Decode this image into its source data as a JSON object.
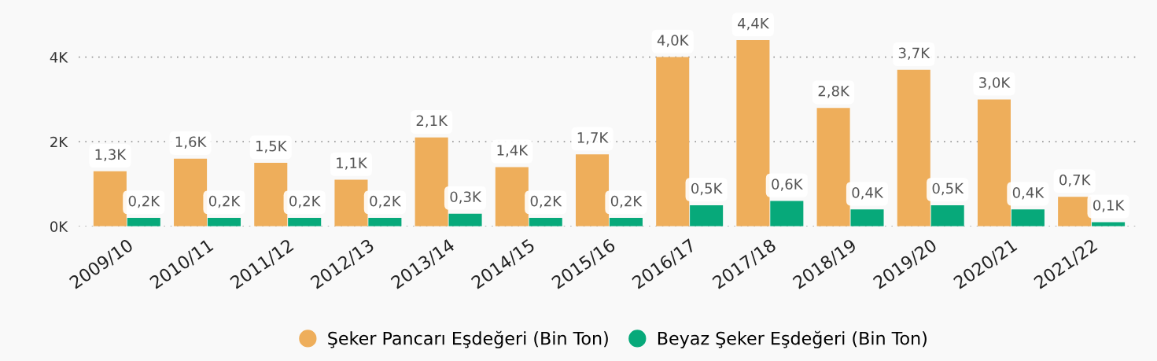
{
  "chart_data": {
    "type": "bar",
    "categories": [
      "2009/10",
      "2010/11",
      "2011/12",
      "2012/13",
      "2013/14",
      "2014/15",
      "2015/16",
      "2016/17",
      "2017/18",
      "2018/19",
      "2019/20",
      "2020/21",
      "2021/22"
    ],
    "series": [
      {
        "name": "Şeker Pancarı Eşdeğeri (Bin Ton)",
        "color": "#eeae5b",
        "values": [
          1.3,
          1.6,
          1.5,
          1.1,
          2.1,
          1.4,
          1.7,
          4.0,
          4.4,
          2.8,
          3.7,
          3.0,
          0.7
        ],
        "value_labels": [
          "1,3K",
          "1,6K",
          "1,5K",
          "1,1K",
          "2,1K",
          "1,4K",
          "1,7K",
          "4,0K",
          "4,4K",
          "2,8K",
          "3,7K",
          "3,0K",
          "0,7K"
        ]
      },
      {
        "name": "Beyaz Şeker Eşdeğeri (Bin Ton)",
        "color": "#07a97a",
        "values": [
          0.2,
          0.2,
          0.2,
          0.2,
          0.3,
          0.2,
          0.2,
          0.5,
          0.6,
          0.4,
          0.5,
          0.4,
          0.1
        ],
        "value_labels": [
          "0,2K",
          "0,2K",
          "0,2K",
          "0,2K",
          "0,3K",
          "0,2K",
          "0,2K",
          "0,5K",
          "0,6K",
          "0,4K",
          "0,5K",
          "0,4K",
          "0,1K"
        ]
      }
    ],
    "ylim": [
      0,
      5
    ],
    "yticks": [
      {
        "value": 0,
        "label": "0K"
      },
      {
        "value": 2,
        "label": "2K"
      },
      {
        "value": 4,
        "label": "4K"
      }
    ],
    "grid": "y",
    "legend": "bottom"
  }
}
